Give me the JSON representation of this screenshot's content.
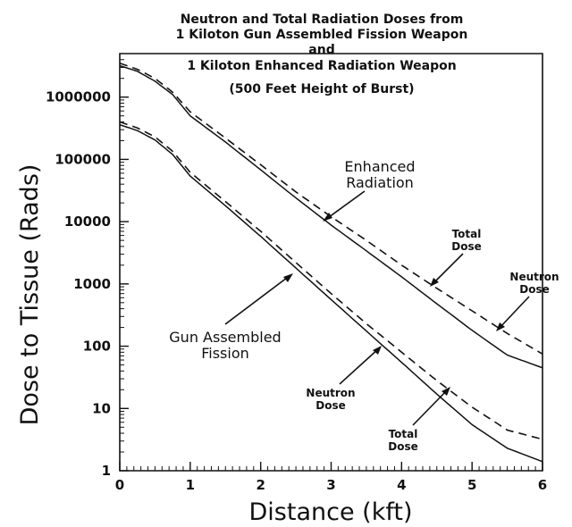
{
  "chart_data": {
    "type": "line",
    "title_lines": [
      "Neutron and Total Radiation Doses from",
      "1 Kiloton Gun Assembled Fission Weapon",
      "and",
      "1 Kiloton Enhanced Radiation Weapon",
      "(500 Feet Height of Burst)"
    ],
    "xlabel": "Distance (kft)",
    "ylabel": "Dose to Tissue (Rads)",
    "xlim": [
      0,
      6
    ],
    "ylim": [
      1,
      5000000
    ],
    "y_scale": "log",
    "x_ticks": [
      "0",
      "1",
      "2",
      "3",
      "4",
      "5",
      "6"
    ],
    "y_ticks": [
      "1",
      "10",
      "100",
      "1000",
      "10000",
      "100000",
      "1000000"
    ],
    "series": [
      {
        "name": "Total Dose",
        "style": "dashed",
        "points": [
          [
            0,
            3500000
          ],
          [
            0.25,
            2800000
          ],
          [
            0.5,
            2000000
          ],
          [
            0.75,
            1200000
          ],
          [
            1,
            580000
          ],
          [
            1.5,
            220000
          ],
          [
            2,
            82000
          ],
          [
            2.5,
            30000
          ],
          [
            3,
            12000
          ],
          [
            3.5,
            5000
          ],
          [
            4,
            2000
          ],
          [
            4.5,
            850
          ],
          [
            5,
            370
          ],
          [
            5.5,
            160
          ],
          [
            6,
            75
          ]
        ]
      },
      {
        "name": "Neutron Dose",
        "style": "solid",
        "points": [
          [
            0,
            3200000
          ],
          [
            0.25,
            2600000
          ],
          [
            0.5,
            1800000
          ],
          [
            0.75,
            1100000
          ],
          [
            1,
            500000
          ],
          [
            1.5,
            190000
          ],
          [
            2,
            68000
          ],
          [
            2.5,
            24000
          ],
          [
            3,
            8800
          ],
          [
            3.5,
            3400
          ],
          [
            4,
            1300
          ],
          [
            4.5,
            480
          ],
          [
            5,
            180
          ],
          [
            5.5,
            72
          ],
          [
            6,
            45
          ]
        ]
      },
      {
        "name": "Total Dose",
        "style": "dashed",
        "points": [
          [
            0,
            400000
          ],
          [
            0.25,
            320000
          ],
          [
            0.5,
            230000
          ],
          [
            0.75,
            135000
          ],
          [
            1,
            62000
          ],
          [
            1.5,
            21000
          ],
          [
            2,
            7000
          ],
          [
            2.5,
            2200
          ],
          [
            3,
            700
          ],
          [
            3.5,
            230
          ],
          [
            4,
            80
          ],
          [
            4.5,
            28
          ],
          [
            5,
            10.5
          ],
          [
            5.5,
            4.5
          ],
          [
            6,
            3.2
          ]
        ]
      },
      {
        "name": "Neutron Dose",
        "style": "solid",
        "points": [
          [
            0,
            360000
          ],
          [
            0.25,
            290000
          ],
          [
            0.5,
            205000
          ],
          [
            0.75,
            120000
          ],
          [
            1,
            54000
          ],
          [
            1.5,
            18000
          ],
          [
            2,
            5800
          ],
          [
            2.5,
            1800
          ],
          [
            3,
            560
          ],
          [
            3.5,
            175
          ],
          [
            4,
            55
          ],
          [
            4.5,
            17
          ],
          [
            5,
            5.5
          ],
          [
            5.5,
            2.3
          ],
          [
            6,
            1.4
          ]
        ]
      }
    ],
    "annotations": {
      "enhanced": [
        "Enhanced",
        "Radiation"
      ],
      "gun": [
        "Gun Assembled",
        "Fission"
      ],
      "total_upper": [
        "Total",
        "Dose"
      ],
      "neutron_upper": [
        "Neutron",
        "Dose"
      ],
      "neutron_lower": [
        "Neutron",
        "Dose"
      ],
      "total_lower": [
        "Total",
        "Dose"
      ]
    },
    "grid": false,
    "legend": "none"
  }
}
